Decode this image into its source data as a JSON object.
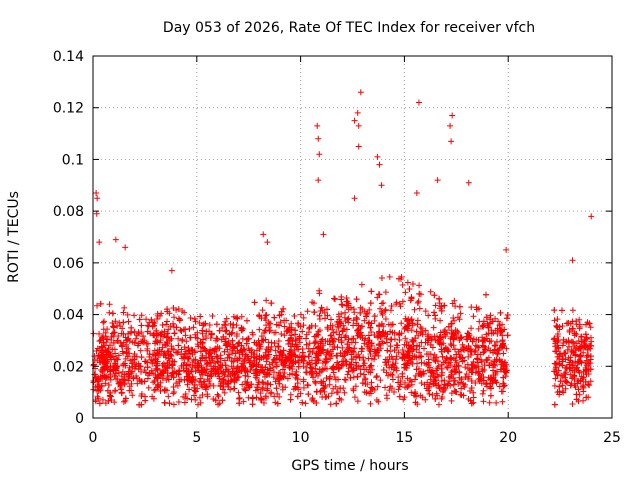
{
  "chart_data": {
    "type": "scatter",
    "title": "Day 053 of 2026, Rate Of TEC Index for receiver vfch",
    "xlabel": "GPS time / hours",
    "ylabel": "ROTI / TECUs",
    "xlim": [
      0,
      25
    ],
    "ylim": [
      0,
      0.14
    ],
    "x_ticks": [
      0,
      5,
      10,
      15,
      20,
      25
    ],
    "y_ticks": [
      0,
      0.02,
      0.04,
      0.06,
      0.08,
      0.1,
      0.12,
      0.14
    ],
    "x_tick_labels": [
      "0",
      "5",
      "10",
      "15",
      "20",
      "25"
    ],
    "y_tick_labels": [
      "0",
      "0.02",
      "0.04",
      "0.06",
      "0.08",
      "0.1",
      "0.12",
      "0.14"
    ],
    "grid": true,
    "marker": "+",
    "color": "#ff0000",
    "data_gap_hours": [
      20.0,
      22.2
    ],
    "series": [
      {
        "name": "ROTI",
        "note": "dense cloud of several thousand points; representative outliers and envelope listed",
        "outliers": [
          {
            "x": 0.15,
            "y": 0.087
          },
          {
            "x": 0.2,
            "y": 0.085
          },
          {
            "x": 0.18,
            "y": 0.079
          },
          {
            "x": 0.3,
            "y": 0.068
          },
          {
            "x": 1.1,
            "y": 0.069
          },
          {
            "x": 1.55,
            "y": 0.066
          },
          {
            "x": 3.8,
            "y": 0.057
          },
          {
            "x": 8.2,
            "y": 0.071
          },
          {
            "x": 8.4,
            "y": 0.068
          },
          {
            "x": 10.8,
            "y": 0.113
          },
          {
            "x": 10.85,
            "y": 0.108
          },
          {
            "x": 10.9,
            "y": 0.102
          },
          {
            "x": 10.85,
            "y": 0.092
          },
          {
            "x": 11.1,
            "y": 0.071
          },
          {
            "x": 12.6,
            "y": 0.115
          },
          {
            "x": 12.75,
            "y": 0.118
          },
          {
            "x": 12.8,
            "y": 0.113
          },
          {
            "x": 12.9,
            "y": 0.126
          },
          {
            "x": 12.8,
            "y": 0.105
          },
          {
            "x": 12.6,
            "y": 0.085
          },
          {
            "x": 13.7,
            "y": 0.101
          },
          {
            "x": 13.8,
            "y": 0.098
          },
          {
            "x": 13.9,
            "y": 0.09
          },
          {
            "x": 15.7,
            "y": 0.122
          },
          {
            "x": 15.6,
            "y": 0.087
          },
          {
            "x": 17.3,
            "y": 0.117
          },
          {
            "x": 17.2,
            "y": 0.113
          },
          {
            "x": 17.25,
            "y": 0.107
          },
          {
            "x": 16.6,
            "y": 0.092
          },
          {
            "x": 18.1,
            "y": 0.091
          },
          {
            "x": 24.0,
            "y": 0.078
          },
          {
            "x": 23.1,
            "y": 0.061
          },
          {
            "x": 19.9,
            "y": 0.065
          }
        ],
        "envelope": [
          {
            "x": 0,
            "median": 0.015,
            "upper": 0.045
          },
          {
            "x": 2,
            "median": 0.014,
            "upper": 0.04
          },
          {
            "x": 4,
            "median": 0.015,
            "upper": 0.042
          },
          {
            "x": 6,
            "median": 0.014,
            "upper": 0.035
          },
          {
            "x": 8,
            "median": 0.015,
            "upper": 0.045
          },
          {
            "x": 10,
            "median": 0.016,
            "upper": 0.04
          },
          {
            "x": 12,
            "median": 0.018,
            "upper": 0.05
          },
          {
            "x": 14,
            "median": 0.018,
            "upper": 0.055
          },
          {
            "x": 16,
            "median": 0.017,
            "upper": 0.05
          },
          {
            "x": 18,
            "median": 0.016,
            "upper": 0.045
          },
          {
            "x": 20,
            "median": 0.015,
            "upper": 0.035
          },
          {
            "x": 22.2,
            "median": 0.016,
            "upper": 0.035
          },
          {
            "x": 24,
            "median": 0.016,
            "upper": 0.038
          }
        ]
      }
    ]
  }
}
